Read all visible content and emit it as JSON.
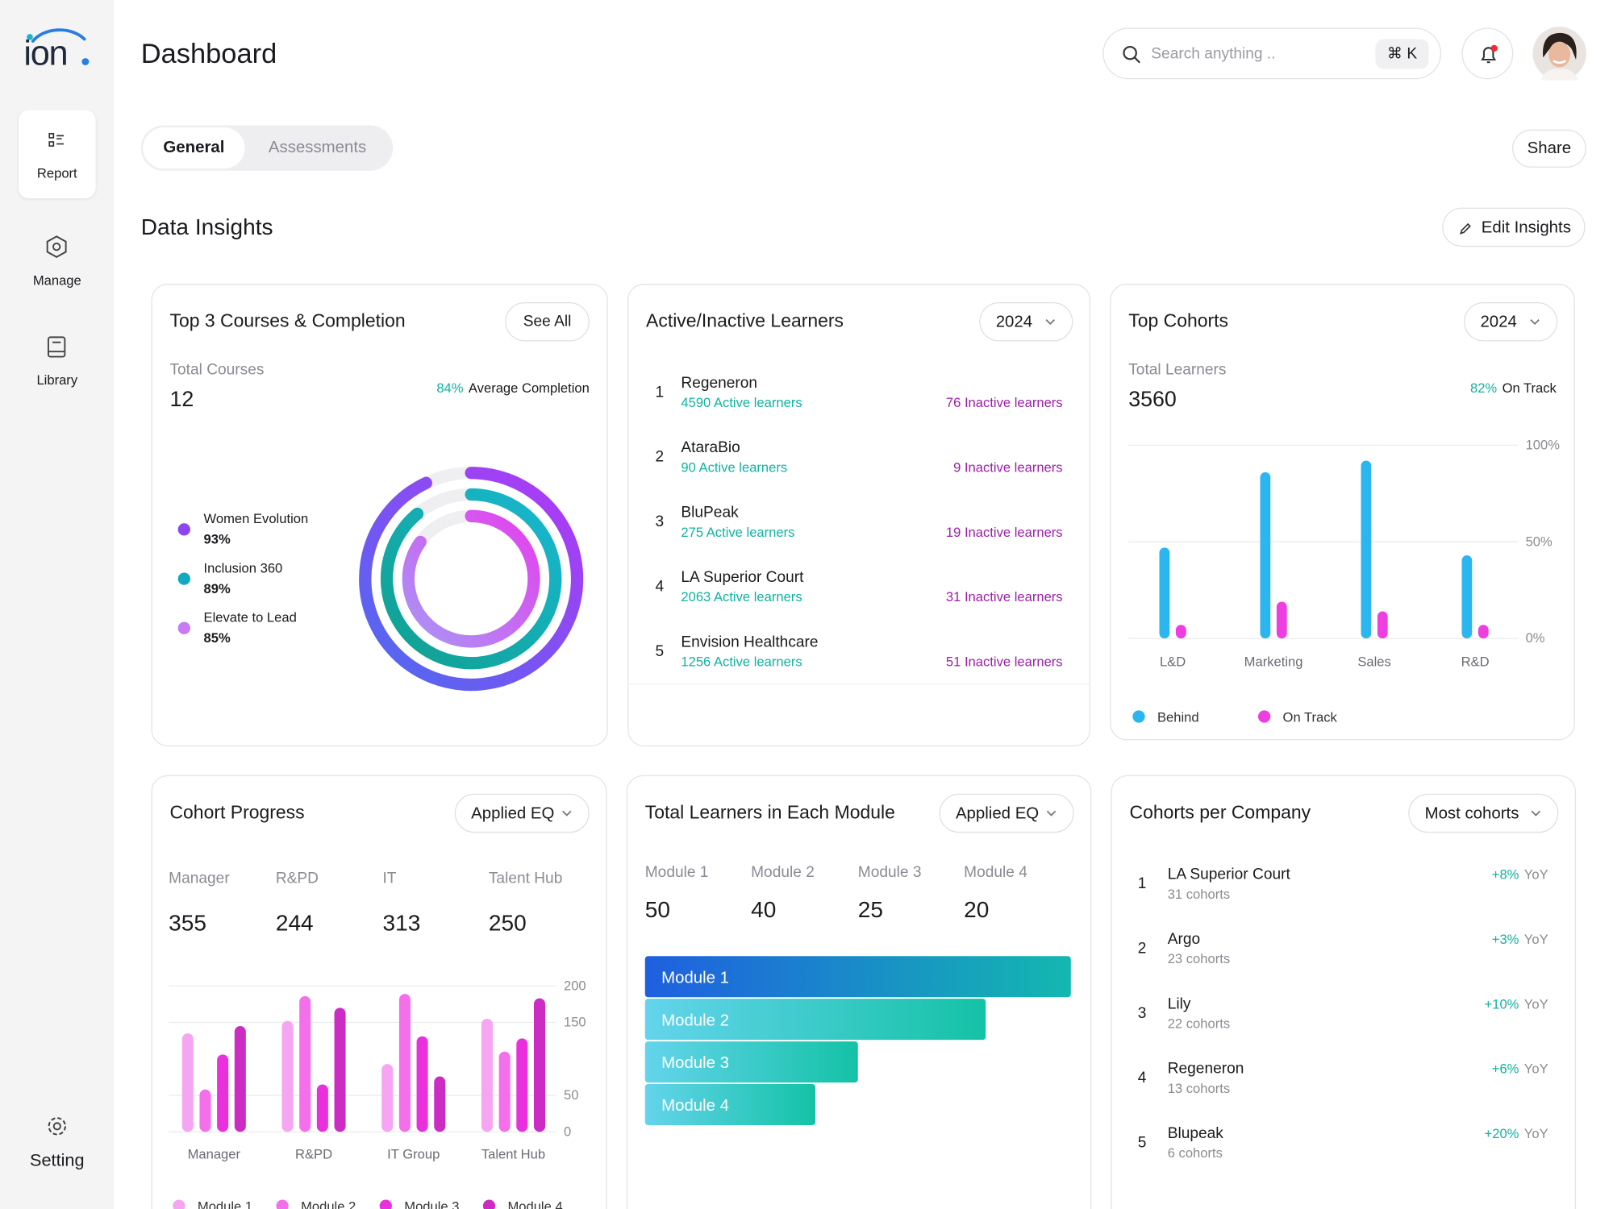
{
  "sidebar": {
    "logo": "ion",
    "nav": [
      "Report",
      "Manage",
      "Library"
    ],
    "setting": "Setting"
  },
  "header": {
    "title": "Dashboard",
    "search_placeholder": "Search anything ..",
    "shortcut": "⌘ K"
  },
  "tabs": [
    "General",
    "Assessments"
  ],
  "share": "Share",
  "section": {
    "title": "Data Insights",
    "edit": "Edit Insights"
  },
  "courses": {
    "title": "Top 3 Courses & Completion",
    "button": "See All",
    "total_label": "Total Courses",
    "total": 12,
    "completion": "84%",
    "completion_label": "Average Completion",
    "items": [
      {
        "name": "Women Evolution",
        "value": 93,
        "label": "93%"
      },
      {
        "name": "Inclusion 360",
        "value": 89,
        "label": "89%"
      },
      {
        "name": "Elevate to Lead",
        "value": 85,
        "label": "85%"
      }
    ]
  },
  "learners": {
    "title": "Active/Inactive Learners",
    "filter": "2024",
    "rows": [
      {
        "rank": 1,
        "name": "Regeneron",
        "active": "4590 Active learners",
        "inactive": "76 Inactive learners"
      },
      {
        "rank": 2,
        "name": "AtaraBio",
        "active": "90 Active learners",
        "inactive": "9 Inactive learners"
      },
      {
        "rank": 3,
        "name": "BluPeak",
        "active": "275 Active learners",
        "inactive": "19 Inactive learners"
      },
      {
        "rank": 4,
        "name": "LA Superior Court",
        "active": "2063 Active learners",
        "inactive": "31 Inactive learners"
      },
      {
        "rank": 5,
        "name": "Envision Healthcare",
        "active": "1256 Active learners",
        "inactive": "51 Inactive learners"
      }
    ]
  },
  "top_cohorts": {
    "title": "Top Cohorts",
    "filter": "2024",
    "total_label": "Total Learners",
    "total": 3560,
    "on_track": "82%",
    "on_track_label": "On Track",
    "chart": {
      "type": "bar",
      "categories": [
        "L&D",
        "Marketing",
        "Sales",
        "R&D"
      ],
      "series": [
        {
          "name": "Behind",
          "color": "#2cb6f0",
          "values": [
            47,
            86,
            92,
            43
          ]
        },
        {
          "name": "On Track",
          "color": "#ee3de0",
          "values": [
            7,
            19,
            14,
            7
          ]
        }
      ],
      "ylim": [
        0,
        100
      ],
      "yticks": [
        {
          "value": 0,
          "label": "0%"
        },
        {
          "value": 50,
          "label": "50%"
        },
        {
          "value": 100,
          "label": "100%"
        }
      ],
      "grid": true
    }
  },
  "cohort_progress": {
    "title": "Cohort Progress",
    "filter": "Applied EQ",
    "stats": [
      {
        "label": "Manager",
        "value": 355
      },
      {
        "label": "R&PD",
        "value": 244
      },
      {
        "label": "IT",
        "value": 313
      },
      {
        "label": "Talent Hub",
        "value": 250
      }
    ],
    "chart": {
      "type": "bar",
      "categories": [
        "Manager",
        "R&PD",
        "IT Group",
        "Talent Hub"
      ],
      "series": [
        {
          "name": "Module 1",
          "color": "#f6a5f2",
          "values": [
            135,
            152,
            93,
            155
          ]
        },
        {
          "name": "Module 2",
          "color": "#f370ea",
          "values": [
            58,
            186,
            189,
            110
          ]
        },
        {
          "name": "Module 3",
          "color": "#e930dc",
          "values": [
            106,
            65,
            131,
            128
          ]
        },
        {
          "name": "Module 4",
          "color": "#cc2cc4",
          "values": [
            145,
            170,
            76,
            183
          ]
        }
      ],
      "ylim": [
        0,
        200
      ],
      "yticks": [
        0,
        50,
        150,
        200
      ],
      "grid": true
    }
  },
  "modules": {
    "title": "Total Learners in Each Module",
    "filter": "Applied EQ",
    "stats": [
      {
        "label": "Module 1",
        "value": 50
      },
      {
        "label": "Module 2",
        "value": 40
      },
      {
        "label": "Module 3",
        "value": 25
      },
      {
        "label": "Module 4",
        "value": 20
      }
    ]
  },
  "companies": {
    "title": "Cohorts per Company",
    "filter": "Most cohorts",
    "rows": [
      {
        "rank": 1,
        "name": "LA Superior Court",
        "cohorts": "31 cohorts",
        "change": "+8%",
        "period": "YoY"
      },
      {
        "rank": 2,
        "name": "Argo",
        "cohorts": "23 cohorts",
        "change": "+3%",
        "period": "YoY"
      },
      {
        "rank": 3,
        "name": "Lily",
        "cohorts": "22 cohorts",
        "change": "+10%",
        "period": "YoY"
      },
      {
        "rank": 4,
        "name": "Regeneron",
        "cohorts": "13 cohorts",
        "change": "+6%",
        "period": "YoY"
      },
      {
        "rank": 5,
        "name": "Blupeak",
        "cohorts": "6 cohorts",
        "change": "+20%",
        "period": "YoY"
      }
    ]
  }
}
